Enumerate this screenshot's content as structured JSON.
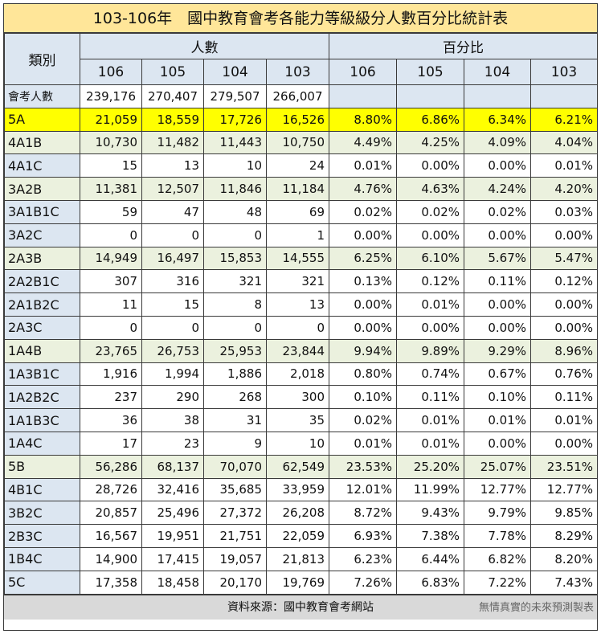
{
  "title": "103-106年　國中教育會考各能力等級級分人數百分比統計表",
  "header": {
    "category": "類別",
    "group_count": "人數",
    "group_percent": "百分比",
    "years": [
      "106",
      "105",
      "104",
      "103"
    ]
  },
  "total_row": {
    "label": "會考人數",
    "counts": [
      "239,176",
      "270,407",
      "279,507",
      "266,007"
    ]
  },
  "rows": [
    {
      "label": "5A",
      "style": "yellow",
      "counts": [
        "21,059",
        "18,559",
        "17,726",
        "16,526"
      ],
      "pcts": [
        "8.80%",
        "6.86%",
        "6.34%",
        "6.21%"
      ]
    },
    {
      "label": "4A1B",
      "style": "green",
      "counts": [
        "10,730",
        "11,482",
        "11,443",
        "10,750"
      ],
      "pcts": [
        "4.49%",
        "4.25%",
        "4.09%",
        "4.04%"
      ]
    },
    {
      "label": "4A1C",
      "style": "plain",
      "counts": [
        "15",
        "13",
        "10",
        "24"
      ],
      "pcts": [
        "0.01%",
        "0.00%",
        "0.00%",
        "0.01%"
      ]
    },
    {
      "label": "3A2B",
      "style": "green",
      "counts": [
        "11,381",
        "12,507",
        "11,846",
        "11,184"
      ],
      "pcts": [
        "4.76%",
        "4.63%",
        "4.24%",
        "4.20%"
      ]
    },
    {
      "label": "3A1B1C",
      "style": "plain",
      "counts": [
        "59",
        "47",
        "48",
        "69"
      ],
      "pcts": [
        "0.02%",
        "0.02%",
        "0.02%",
        "0.03%"
      ]
    },
    {
      "label": "3A2C",
      "style": "plain",
      "counts": [
        "0",
        "0",
        "0",
        "1"
      ],
      "pcts": [
        "0.00%",
        "0.00%",
        "0.00%",
        "0.00%"
      ]
    },
    {
      "label": "2A3B",
      "style": "green",
      "counts": [
        "14,949",
        "16,497",
        "15,853",
        "14,555"
      ],
      "pcts": [
        "6.25%",
        "6.10%",
        "5.67%",
        "5.47%"
      ]
    },
    {
      "label": "2A2B1C",
      "style": "plain",
      "counts": [
        "307",
        "316",
        "321",
        "321"
      ],
      "pcts": [
        "0.13%",
        "0.12%",
        "0.11%",
        "0.12%"
      ]
    },
    {
      "label": "2A1B2C",
      "style": "plain",
      "counts": [
        "11",
        "15",
        "8",
        "13"
      ],
      "pcts": [
        "0.00%",
        "0.01%",
        "0.00%",
        "0.00%"
      ]
    },
    {
      "label": "2A3C",
      "style": "plain",
      "counts": [
        "0",
        "0",
        "0",
        "0"
      ],
      "pcts": [
        "0.00%",
        "0.00%",
        "0.00%",
        "0.00%"
      ]
    },
    {
      "label": "1A4B",
      "style": "green",
      "counts": [
        "23,765",
        "26,753",
        "25,953",
        "23,844"
      ],
      "pcts": [
        "9.94%",
        "9.89%",
        "9.29%",
        "8.96%"
      ]
    },
    {
      "label": "1A3B1C",
      "style": "plain",
      "counts": [
        "1,916",
        "1,994",
        "1,886",
        "2,018"
      ],
      "pcts": [
        "0.80%",
        "0.74%",
        "0.67%",
        "0.76%"
      ]
    },
    {
      "label": "1A2B2C",
      "style": "plain",
      "counts": [
        "237",
        "290",
        "268",
        "300"
      ],
      "pcts": [
        "0.10%",
        "0.11%",
        "0.10%",
        "0.11%"
      ]
    },
    {
      "label": "1A1B3C",
      "style": "plain",
      "counts": [
        "36",
        "38",
        "31",
        "35"
      ],
      "pcts": [
        "0.02%",
        "0.01%",
        "0.01%",
        "0.01%"
      ]
    },
    {
      "label": "1A4C",
      "style": "plain",
      "counts": [
        "17",
        "23",
        "9",
        "10"
      ],
      "pcts": [
        "0.01%",
        "0.01%",
        "0.00%",
        "0.00%"
      ]
    },
    {
      "label": "5B",
      "style": "green",
      "counts": [
        "56,286",
        "68,137",
        "70,070",
        "62,549"
      ],
      "pcts": [
        "23.53%",
        "25.20%",
        "25.07%",
        "23.51%"
      ]
    },
    {
      "label": "4B1C",
      "style": "plain",
      "counts": [
        "28,726",
        "32,416",
        "35,685",
        "33,959"
      ],
      "pcts": [
        "12.01%",
        "11.99%",
        "12.77%",
        "12.77%"
      ]
    },
    {
      "label": "3B2C",
      "style": "plain",
      "counts": [
        "20,857",
        "25,496",
        "27,372",
        "26,208"
      ],
      "pcts": [
        "8.72%",
        "9.43%",
        "9.79%",
        "9.85%"
      ]
    },
    {
      "label": "2B3C",
      "style": "plain",
      "counts": [
        "16,567",
        "19,951",
        "21,751",
        "22,059"
      ],
      "pcts": [
        "6.93%",
        "7.38%",
        "7.78%",
        "8.29%"
      ]
    },
    {
      "label": "1B4C",
      "style": "plain",
      "counts": [
        "14,900",
        "17,415",
        "19,057",
        "21,813"
      ],
      "pcts": [
        "6.23%",
        "6.44%",
        "6.82%",
        "8.20%"
      ]
    },
    {
      "label": "5C",
      "style": "plain",
      "counts": [
        "17,358",
        "18,458",
        "20,170",
        "19,769"
      ],
      "pcts": [
        "7.26%",
        "6.83%",
        "7.22%",
        "7.43%"
      ]
    }
  ],
  "footer": {
    "source": "資料來源：國中教育會考網站",
    "maker": "無情真實的未來預測製表"
  },
  "colors": {
    "title_bg": "#ffe699",
    "header_bg": "#dce6f1",
    "highlight_yellow": "#ffff00",
    "highlight_green": "#ebf1de",
    "footer_bg": "#d9d9d9"
  }
}
